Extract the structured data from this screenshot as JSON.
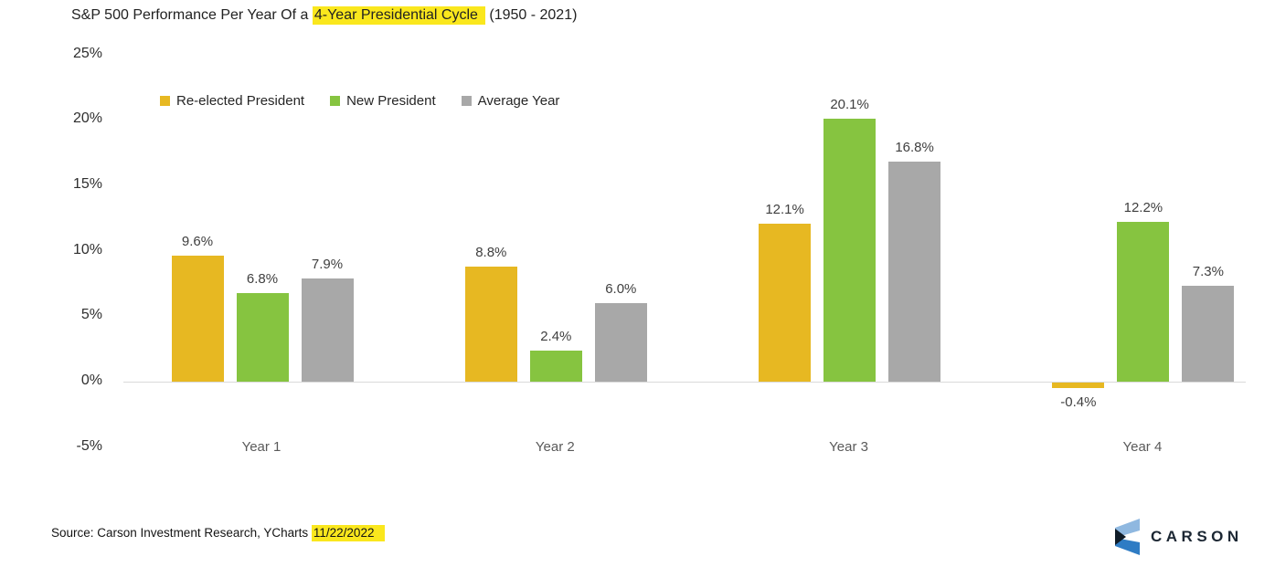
{
  "title": {
    "prefix": "S&P 500 Performance Per Year Of a ",
    "highlight": "4-Year Presidential Cycle",
    "suffix": " (1950 - 2021)"
  },
  "source": {
    "prefix": "Source: Carson Investment Research, YCharts ",
    "highlight": "11/22/2022"
  },
  "logo": {
    "wordmark": "CARSON"
  },
  "colors": {
    "highlight_yellow": "#FAE71D",
    "gold": "#E7B822",
    "green": "#86C440",
    "gray": "#A8A8A8",
    "baseline_gray": "#D9D9D9",
    "logo_light_blue": "#8FB8E0",
    "logo_mid_blue": "#2F7CC4",
    "logo_dark_navy": "#101C28",
    "wordmark_navy": "#1C2733"
  },
  "chart_data": {
    "type": "bar",
    "title": "S&P 500 Performance Per Year Of a 4-Year Presidential Cycle (1950 - 2021)",
    "categories": [
      "Year 1",
      "Year 2",
      "Year 3",
      "Year 4"
    ],
    "series": [
      {
        "name": "Re-elected President",
        "color": "#E7B822",
        "values": [
          9.6,
          8.8,
          12.1,
          -0.4
        ],
        "labels": [
          "9.6%",
          "8.8%",
          "12.1%",
          "-0.4%"
        ]
      },
      {
        "name": "New President",
        "color": "#86C440",
        "values": [
          6.8,
          2.4,
          20.1,
          12.2
        ],
        "labels": [
          "6.8%",
          "2.4%",
          "20.1%",
          "12.2%"
        ]
      },
      {
        "name": "Average Year",
        "color": "#A8A8A8",
        "values": [
          7.9,
          6.0,
          16.8,
          7.3
        ],
        "labels": [
          "7.9%",
          "6.0%",
          "16.8%",
          "7.3%"
        ]
      }
    ],
    "xlabel": "",
    "ylabel": "",
    "ylim": [
      -5,
      25
    ],
    "yticks": [
      25,
      20,
      15,
      10,
      5,
      0,
      -5
    ],
    "ytick_labels": [
      "25%",
      "20%",
      "15%",
      "10%",
      "5%",
      "0%",
      "-5%"
    ],
    "grid": false,
    "legend_position": "top-left"
  }
}
